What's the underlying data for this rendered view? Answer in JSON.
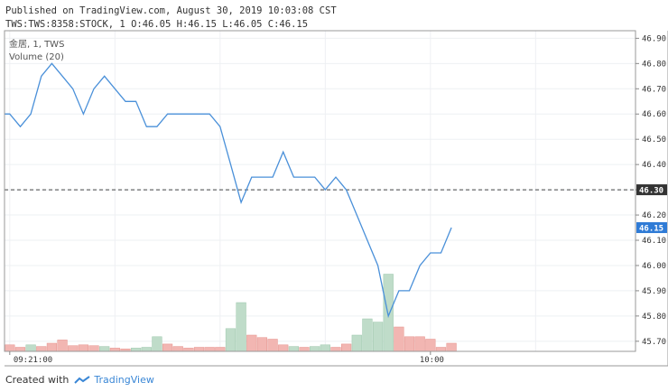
{
  "header": {
    "published": "Published on TradingView.com, August 30, 2019 10:03:08 CST",
    "ohlc": "TWS:TWS:8358:STOCK, 1 O:46.05 H:46.15 L:46.05 C:46.15"
  },
  "footer": {
    "created_with": "Created with",
    "brand": "TradingView"
  },
  "colors": {
    "price_line": "#4a90d9",
    "vol_up": "#bfdcc9",
    "vol_down": "#f2b6b2",
    "last_price_bg": "#2f7bd6",
    "ref_price_bg": "#333333"
  },
  "chart_data": {
    "type": "line",
    "legend": [
      "金居, 1, TWS",
      "Volume (20)"
    ],
    "y_ticks": [
      "46.90",
      "46.80",
      "46.70",
      "46.60",
      "46.50",
      "46.40",
      "46.30",
      "46.20",
      "46.10",
      "46.00",
      "45.90",
      "45.80",
      "45.70"
    ],
    "ylim": [
      45.66,
      46.93
    ],
    "x_ticks": [
      {
        "t": 0,
        "label": "09:21:00"
      },
      {
        "t": 40,
        "label": "10:00"
      }
    ],
    "xlim": [
      -0.5,
      59.5
    ],
    "reference_price": {
      "value": 46.3,
      "label": "46.30"
    },
    "last_price": {
      "value": 46.15,
      "label": "46.15"
    },
    "price_x": [
      -0.5,
      0,
      1,
      2,
      3,
      4,
      5,
      6,
      7,
      8,
      9,
      10,
      11,
      12,
      13,
      14,
      15,
      16,
      17,
      18,
      19,
      20,
      21,
      22,
      23,
      24,
      25,
      26,
      27,
      28,
      29,
      30,
      31,
      32,
      33,
      34,
      35,
      36,
      37,
      38,
      39,
      40,
      41,
      42
    ],
    "price_y": [
      46.6,
      46.6,
      46.55,
      46.6,
      46.75,
      46.8,
      46.75,
      46.7,
      46.6,
      46.7,
      46.75,
      46.7,
      46.65,
      46.65,
      46.55,
      46.55,
      46.6,
      46.6,
      46.6,
      46.6,
      46.6,
      46.55,
      46.4,
      46.25,
      46.35,
      46.35,
      46.35,
      46.45,
      46.35,
      46.35,
      46.35,
      46.3,
      46.35,
      46.3,
      46.2,
      46.1,
      46.0,
      45.8,
      45.9,
      45.9,
      46.0,
      46.05,
      46.05,
      46.15
    ],
    "volume_max": 100,
    "volume": [
      {
        "t": 0,
        "v": 8,
        "dir": "down"
      },
      {
        "t": 1,
        "v": 5,
        "dir": "down"
      },
      {
        "t": 2,
        "v": 8,
        "dir": "up"
      },
      {
        "t": 3,
        "v": 6,
        "dir": "down"
      },
      {
        "t": 4,
        "v": 10,
        "dir": "down"
      },
      {
        "t": 5,
        "v": 14,
        "dir": "down"
      },
      {
        "t": 6,
        "v": 7,
        "dir": "down"
      },
      {
        "t": 7,
        "v": 8,
        "dir": "down"
      },
      {
        "t": 8,
        "v": 7,
        "dir": "down"
      },
      {
        "t": 9,
        "v": 6,
        "dir": "up"
      },
      {
        "t": 10,
        "v": 4,
        "dir": "down"
      },
      {
        "t": 11,
        "v": 3,
        "dir": "down"
      },
      {
        "t": 12,
        "v": 4,
        "dir": "up"
      },
      {
        "t": 13,
        "v": 5,
        "dir": "up"
      },
      {
        "t": 14,
        "v": 18,
        "dir": "up"
      },
      {
        "t": 15,
        "v": 9,
        "dir": "down"
      },
      {
        "t": 16,
        "v": 6,
        "dir": "down"
      },
      {
        "t": 17,
        "v": 4,
        "dir": "down"
      },
      {
        "t": 18,
        "v": 5,
        "dir": "down"
      },
      {
        "t": 19,
        "v": 5,
        "dir": "down"
      },
      {
        "t": 20,
        "v": 5,
        "dir": "down"
      },
      {
        "t": 21,
        "v": 28,
        "dir": "up"
      },
      {
        "t": 22,
        "v": 60,
        "dir": "up"
      },
      {
        "t": 23,
        "v": 20,
        "dir": "down"
      },
      {
        "t": 24,
        "v": 17,
        "dir": "down"
      },
      {
        "t": 25,
        "v": 15,
        "dir": "down"
      },
      {
        "t": 26,
        "v": 8,
        "dir": "down"
      },
      {
        "t": 27,
        "v": 6,
        "dir": "up"
      },
      {
        "t": 28,
        "v": 5,
        "dir": "down"
      },
      {
        "t": 29,
        "v": 6,
        "dir": "up"
      },
      {
        "t": 30,
        "v": 8,
        "dir": "up"
      },
      {
        "t": 31,
        "v": 5,
        "dir": "down"
      },
      {
        "t": 32,
        "v": 9,
        "dir": "down"
      },
      {
        "t": 33,
        "v": 20,
        "dir": "up"
      },
      {
        "t": 34,
        "v": 40,
        "dir": "up"
      },
      {
        "t": 35,
        "v": 36,
        "dir": "up"
      },
      {
        "t": 36,
        "v": 95,
        "dir": "up"
      },
      {
        "t": 37,
        "v": 30,
        "dir": "down"
      },
      {
        "t": 38,
        "v": 18,
        "dir": "down"
      },
      {
        "t": 39,
        "v": 18,
        "dir": "down"
      },
      {
        "t": 40,
        "v": 15,
        "dir": "down"
      },
      {
        "t": 41,
        "v": 5,
        "dir": "down"
      },
      {
        "t": 42,
        "v": 10,
        "dir": "down"
      }
    ]
  }
}
